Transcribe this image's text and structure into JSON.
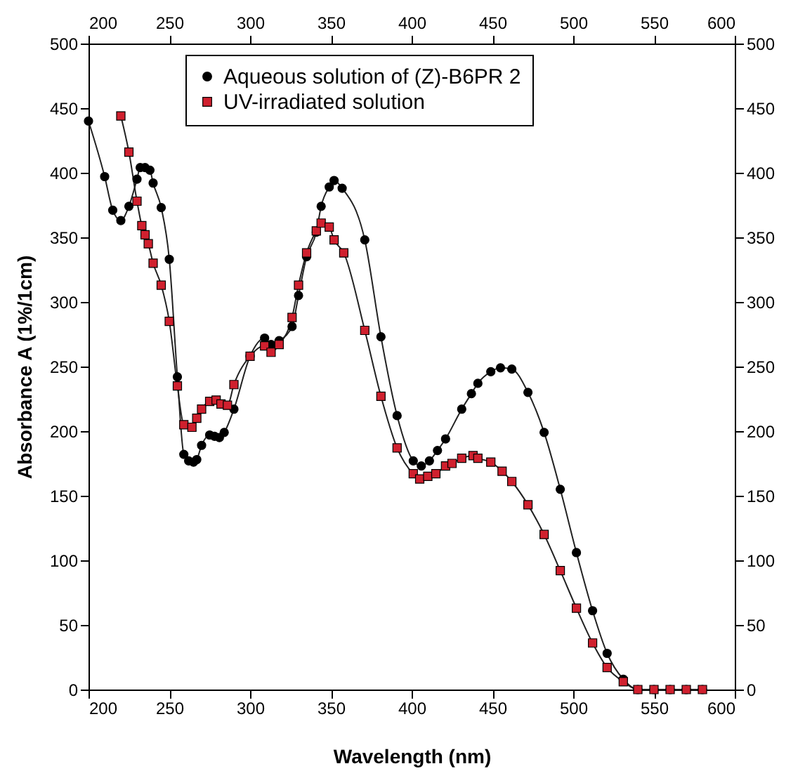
{
  "chart_data": {
    "type": "line",
    "xlabel": "Wavelength (nm)",
    "ylabel": "Absorbance A (1%/1cm)",
    "series": [
      {
        "name": "Aqueous solution of (Z)-B6PR 2",
        "color": "#000000",
        "marker": "circle",
        "x": [
          200,
          210,
          215,
          220,
          225,
          230,
          232,
          235,
          238,
          240,
          245,
          250,
          255,
          259,
          262,
          265,
          267,
          270,
          275,
          278,
          281,
          284,
          290,
          300,
          309,
          313,
          318,
          326,
          330,
          335,
          341,
          344,
          349,
          352,
          357,
          371,
          381,
          391,
          401,
          406,
          411,
          416,
          421,
          431,
          437,
          441,
          449,
          455,
          462,
          472,
          482,
          492,
          502,
          512,
          521,
          531,
          540,
          550,
          560,
          570,
          580
        ],
        "values": [
          440,
          397,
          371,
          363,
          374,
          395,
          404,
          404,
          402,
          392,
          373,
          333,
          242,
          182,
          177,
          176,
          178,
          189,
          197,
          196,
          195,
          199,
          217,
          258,
          272,
          267,
          270,
          281,
          305,
          335,
          354,
          374,
          389,
          394,
          388,
          348,
          273,
          212,
          177,
          173,
          177,
          185,
          194,
          217,
          229,
          237,
          246,
          249,
          248,
          230,
          199,
          155,
          106,
          61,
          28,
          8,
          0,
          0,
          0,
          0,
          0
        ]
      },
      {
        "name": "UV-irradiated solution",
        "color": "#d0202e",
        "marker": "square",
        "x": [
          220,
          225,
          230,
          233,
          235,
          237,
          240,
          245,
          250,
          255,
          259,
          264,
          267,
          270,
          275,
          279,
          282,
          286,
          290,
          300,
          309,
          313,
          318,
          326,
          330,
          335,
          341,
          344,
          349,
          352,
          358,
          371,
          381,
          391,
          401,
          405,
          410,
          415,
          421,
          425,
          431,
          438,
          441,
          449,
          456,
          462,
          472,
          482,
          492,
          502,
          512,
          521,
          531,
          540,
          550,
          560,
          570,
          580
        ],
        "values": [
          444,
          416,
          378,
          359,
          352,
          345,
          330,
          313,
          285,
          235,
          205,
          203,
          210,
          217,
          223,
          224,
          221,
          220,
          236,
          258,
          266,
          261,
          267,
          288,
          313,
          338,
          355,
          361,
          358,
          348,
          338,
          278,
          227,
          187,
          167,
          163,
          165,
          167,
          173,
          175,
          179,
          181,
          179,
          176,
          169,
          161,
          143,
          120,
          92,
          63,
          36,
          17,
          6,
          0,
          0,
          0,
          0,
          0
        ]
      }
    ],
    "xlim": [
      200,
      600
    ],
    "xticks": [
      200,
      250,
      300,
      350,
      400,
      450,
      500,
      550,
      600
    ],
    "ylim": [
      0,
      500
    ],
    "yticks": [
      0,
      50,
      100,
      150,
      200,
      250,
      300,
      350,
      400,
      450,
      500
    ],
    "x2lim": [
      200,
      600
    ],
    "x2ticks": [
      200,
      250,
      300,
      350,
      400,
      450,
      500,
      550,
      600
    ],
    "y2lim": [
      0,
      500
    ],
    "y2ticks": [
      0,
      50,
      100,
      150,
      200,
      250,
      300,
      350,
      400,
      450,
      500
    ],
    "legend": "top",
    "grid": false,
    "line_style": "solid"
  }
}
